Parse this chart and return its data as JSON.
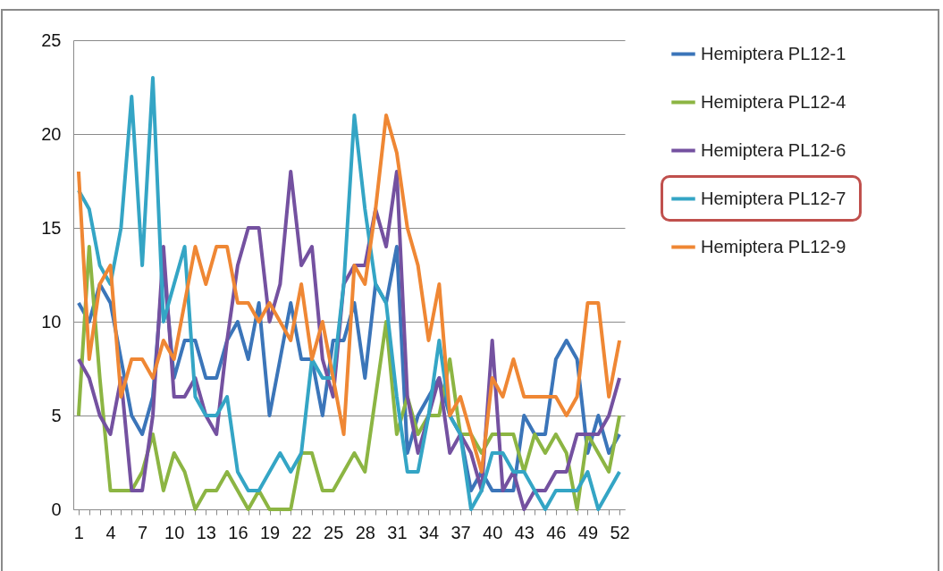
{
  "chart_data": {
    "type": "line",
    "categories": [
      "1",
      null,
      null,
      "4",
      null,
      null,
      "7",
      null,
      null,
      "10",
      null,
      null,
      "13",
      null,
      null,
      "16",
      null,
      null,
      "19",
      null,
      null,
      "22",
      null,
      null,
      "25",
      null,
      null,
      "28",
      null,
      null,
      "31",
      null,
      null,
      "34",
      null,
      null,
      "37",
      null,
      null,
      "40",
      null,
      null,
      "43",
      null,
      null,
      "46",
      null,
      null,
      "49",
      null,
      null,
      "52"
    ],
    "series": [
      {
        "name": "Hemiptera PL12-1",
        "color": "#3b75b9",
        "values": [
          11,
          10,
          12,
          11,
          8,
          5,
          4,
          6,
          13,
          7,
          9,
          9,
          7,
          7,
          9,
          10,
          8,
          11,
          5,
          8,
          11,
          8,
          8,
          5,
          9,
          9,
          11,
          7,
          12,
          11,
          14,
          3,
          5,
          6,
          7,
          5,
          4,
          1,
          2,
          1,
          1,
          1,
          5,
          4,
          4,
          8,
          9,
          8,
          3,
          5,
          3,
          4
        ]
      },
      {
        "name": "Hemiptera PL12-4",
        "color": "#8cb543",
        "values": [
          5,
          14,
          7,
          1,
          1,
          1,
          2,
          4,
          1,
          3,
          2,
          0,
          1,
          1,
          2,
          1,
          0,
          1,
          0,
          0,
          0,
          3,
          3,
          1,
          1,
          2,
          3,
          2,
          6,
          10,
          4,
          6,
          4,
          5,
          5,
          8,
          4,
          4,
          3,
          4,
          4,
          4,
          2,
          4,
          3,
          4,
          3,
          0,
          4,
          3,
          2,
          5
        ]
      },
      {
        "name": "Hemiptera PL12-6",
        "color": "#7451a0",
        "values": [
          8,
          7,
          5,
          4,
          7,
          1,
          1,
          5,
          14,
          6,
          6,
          7,
          5,
          4,
          9,
          13,
          15,
          15,
          10,
          12,
          18,
          13,
          14,
          8,
          6,
          12,
          13,
          13,
          16,
          14,
          18,
          6,
          3,
          5,
          7,
          3,
          4,
          3,
          1,
          9,
          1,
          2,
          0,
          1,
          1,
          2,
          2,
          4,
          4,
          4,
          5,
          7
        ]
      },
      {
        "name": "Hemiptera PL12-7",
        "color": "#34a5c5",
        "values": [
          17,
          16,
          13,
          12,
          15,
          22,
          13,
          23,
          10,
          12,
          14,
          6,
          5,
          5,
          6,
          2,
          1,
          1,
          2,
          3,
          2,
          3,
          8,
          7,
          7,
          12,
          21,
          16,
          12,
          11,
          6,
          2,
          2,
          5,
          9,
          5,
          4,
          0,
          1,
          3,
          3,
          2,
          2,
          1,
          0,
          1,
          1,
          1,
          2,
          0,
          1,
          2
        ]
      },
      {
        "name": "Hemiptera PL12-9",
        "color": "#ef8734",
        "values": [
          18,
          8,
          12,
          13,
          6,
          8,
          8,
          7,
          9,
          8,
          11,
          14,
          12,
          14,
          14,
          11,
          11,
          10,
          11,
          10,
          9,
          12,
          8,
          10,
          7,
          4,
          13,
          12,
          16,
          21,
          19,
          15,
          13,
          9,
          12,
          5,
          6,
          4,
          2,
          7,
          6,
          8,
          6,
          6,
          6,
          6,
          5,
          6,
          11,
          11,
          6,
          9
        ]
      }
    ],
    "ylim": [
      0,
      25
    ],
    "yticks": [
      0,
      5,
      10,
      15,
      20,
      25
    ],
    "grid": "y",
    "legend": "right"
  }
}
